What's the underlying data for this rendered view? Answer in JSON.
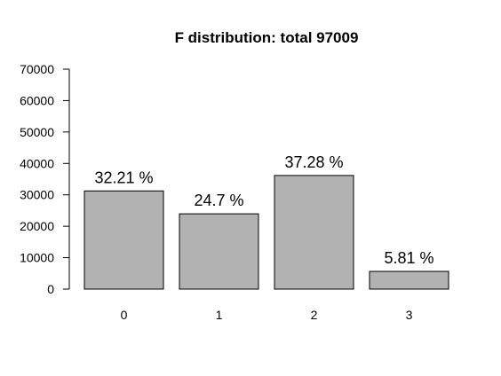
{
  "chart_data": {
    "type": "bar",
    "title": "F distribution: total  97009",
    "xlabel": "",
    "ylabel": "",
    "categories": [
      "0",
      "1",
      "2",
      "3"
    ],
    "values": [
      31247,
      23961,
      36165,
      5636
    ],
    "data_labels": [
      "32.21 %",
      "24.7 %",
      "37.28 %",
      "5.81 %"
    ],
    "ylim": [
      0,
      70000
    ],
    "yticks": [
      0,
      10000,
      20000,
      30000,
      40000,
      50000,
      60000,
      70000
    ],
    "ytick_labels": [
      "0",
      "10000",
      "20000",
      "30000",
      "40000",
      "50000",
      "60000",
      "70000"
    ],
    "bar_color": "#b2b2b2",
    "border_color": "#000000",
    "grid": false,
    "legend": "none"
  }
}
